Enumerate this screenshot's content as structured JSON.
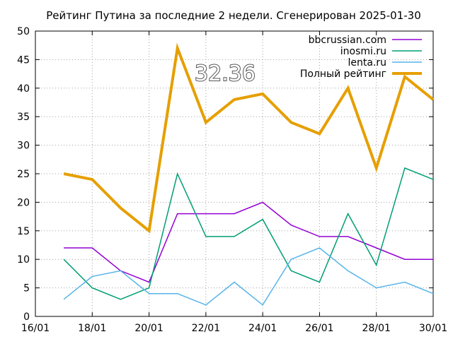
{
  "chart_data": {
    "type": "line",
    "title": "Рейтинг Путина за последние 2 недели. Сгенерирован 2025-01-30",
    "xlabel": "",
    "ylabel": "",
    "x_tick_labels": [
      "16/01",
      "18/01",
      "20/01",
      "22/01",
      "24/01",
      "26/01",
      "28/01",
      "30/01"
    ],
    "xlim_day": [
      16,
      30
    ],
    "ylim": [
      0,
      50
    ],
    "y_ticks": [
      0,
      5,
      10,
      15,
      20,
      25,
      30,
      35,
      40,
      45,
      50
    ],
    "grid": true,
    "grid_style": "dotted",
    "legend_position": "top-right",
    "annotation": "32.36",
    "x_days": [
      17,
      18,
      19,
      20,
      21,
      22,
      23,
      24,
      25,
      26,
      27,
      28,
      29,
      30
    ],
    "series": [
      {
        "name": "bbcrussian.com",
        "color": "#9400d3",
        "width": 1.5,
        "values": [
          12,
          12,
          8,
          6,
          18,
          18,
          18,
          20,
          16,
          14,
          14,
          12,
          10,
          10
        ]
      },
      {
        "name": "inosmi.ru",
        "color": "#009e73",
        "width": 1.5,
        "values": [
          10,
          5,
          3,
          5,
          25,
          14,
          14,
          17,
          8,
          6,
          18,
          9,
          26,
          24
        ]
      },
      {
        "name": "lenta.ru",
        "color": "#56b4e9",
        "width": 1.5,
        "values": [
          3,
          7,
          8,
          4,
          4,
          2,
          6,
          2,
          10,
          12,
          8,
          5,
          6,
          4
        ]
      },
      {
        "name": "Полный рейтинг",
        "color": "#e69f00",
        "width": 4,
        "values": [
          25,
          24,
          19,
          15,
          47,
          34,
          38,
          39,
          34,
          32,
          40,
          26,
          42,
          38
        ]
      }
    ]
  }
}
